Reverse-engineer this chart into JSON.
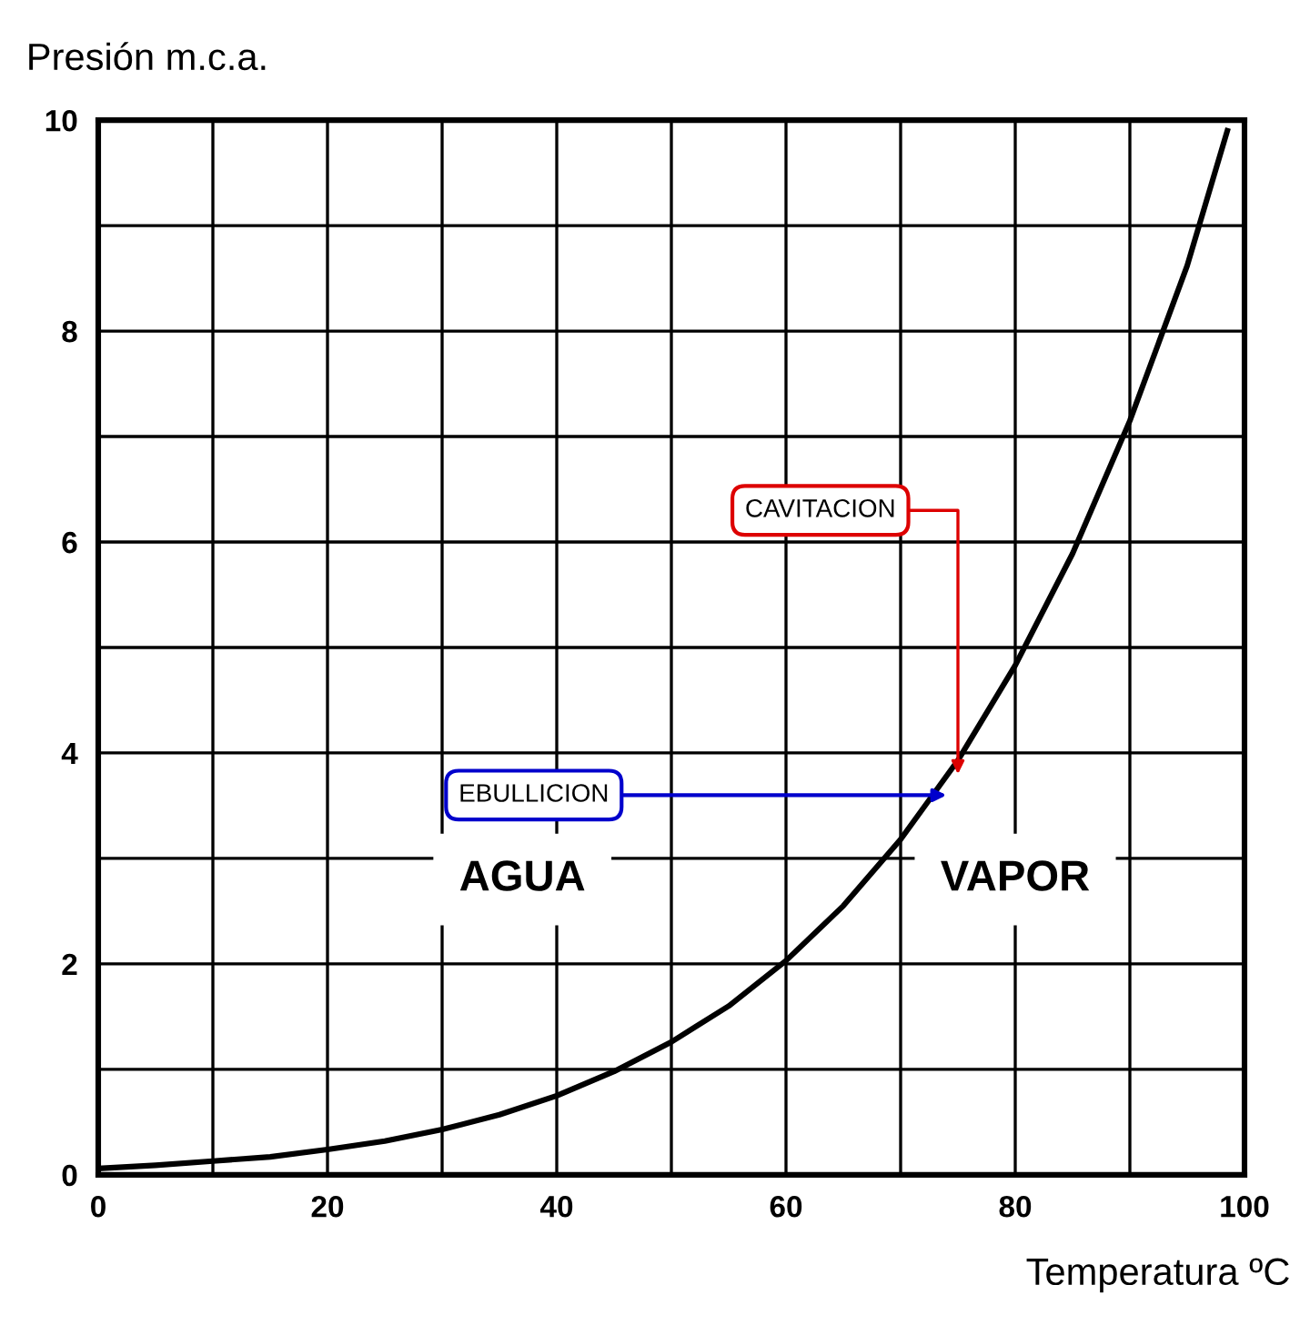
{
  "chart_data": {
    "type": "line",
    "ylabel": "Presión m.c.a.",
    "xlabel": "Temperatura ºC",
    "x": [
      0,
      5,
      10,
      15,
      20,
      25,
      30,
      35,
      40,
      45,
      50,
      55,
      60,
      65,
      70,
      75,
      80,
      85,
      90,
      95,
      98.5
    ],
    "series": [
      {
        "color": "#000000",
        "values": [
          0.06,
          0.09,
          0.13,
          0.17,
          0.24,
          0.32,
          0.43,
          0.57,
          0.75,
          0.98,
          1.26,
          1.6,
          2.03,
          2.55,
          3.18,
          3.93,
          4.83,
          5.89,
          7.15,
          8.62,
          9.9
        ]
      }
    ],
    "xlim": [
      0,
      100
    ],
    "ylim": [
      0,
      10
    ],
    "xticks": [
      0,
      {
        "value": 10,
        "label": null
      },
      20,
      {
        "value": 30,
        "label": null
      },
      40,
      {
        "value": 50,
        "label": null
      },
      60,
      {
        "value": 70,
        "label": null
      },
      80,
      {
        "value": 90,
        "label": null
      },
      100
    ],
    "yticks": [
      0,
      {
        "value": 1,
        "label": null
      },
      2,
      {
        "value": 3,
        "label": null
      },
      4,
      {
        "value": 5,
        "label": null
      },
      6,
      {
        "value": 7,
        "label": null
      },
      8,
      {
        "value": 9,
        "label": null
      },
      10
    ],
    "grid": true,
    "marker": "none",
    "line_style": "solid",
    "annotations": [
      {
        "text": "CAVITACION",
        "x": 75,
        "y": 3.8
      },
      {
        "text": "EBULLICION",
        "x": 74,
        "y": 3.6
      },
      "AGUA",
      "VAPOR"
    ]
  }
}
